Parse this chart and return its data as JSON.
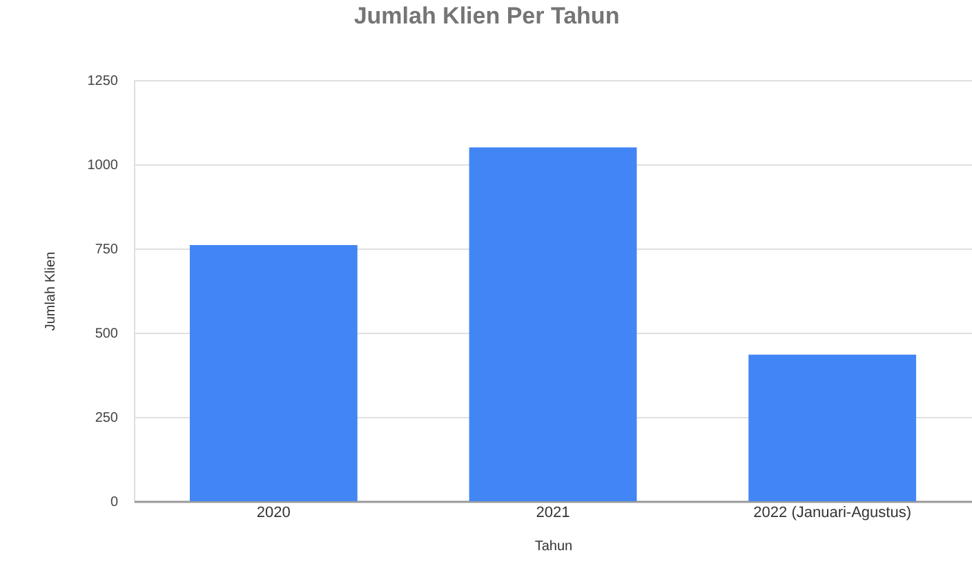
{
  "chart_data": {
    "type": "bar",
    "title": "Jumlah Klien Per Tahun",
    "xlabel": "Tahun",
    "ylabel": "Jumlah Klien",
    "categories": [
      "2020",
      "2021",
      "2022 (Januari-Agustus)"
    ],
    "values": [
      760,
      1050,
      435
    ],
    "color": "#4285f4",
    "ylim": [
      0,
      1250
    ],
    "yticks": [
      0,
      250,
      500,
      750,
      1000,
      1250
    ],
    "grid": "y"
  }
}
